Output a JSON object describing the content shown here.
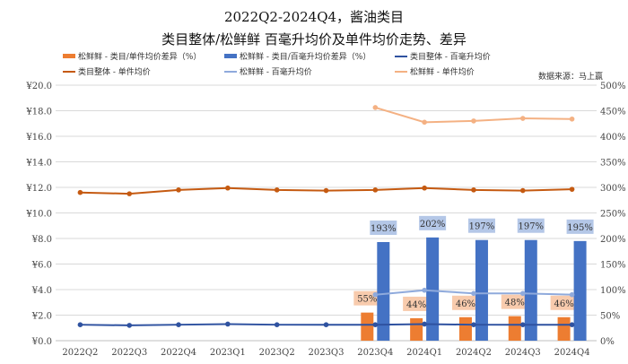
{
  "chart_data": {
    "type": "bar+line",
    "title": "2022Q2-2024Q4，酱油类目",
    "subtitle": "类目整体/松鲜鲜 百毫升均价及单件均价走势、差异",
    "source": "数据来源：马上赢",
    "categories": [
      "2022Q2",
      "2022Q3",
      "2022Q4",
      "2023Q1",
      "2023Q2",
      "2023Q3",
      "2023Q4",
      "2024Q1",
      "2024Q2",
      "2024Q3",
      "2024Q4"
    ],
    "y_left": {
      "ylim": [
        0,
        20
      ],
      "ticks": [
        "¥0.0",
        "¥2.0",
        "¥4.0",
        "¥6.0",
        "¥8.0",
        "¥10.0",
        "¥12.0",
        "¥14.0",
        "¥16.0",
        "¥18.0",
        "¥20.0"
      ]
    },
    "y_right": {
      "ylim": [
        0,
        500
      ],
      "ticks": [
        "0%",
        "50%",
        "100%",
        "150%",
        "200%",
        "250%",
        "300%",
        "350%",
        "400%",
        "450%",
        "500%"
      ]
    },
    "grid": true,
    "legend_position": "top",
    "series": [
      {
        "name": "松鲜鲜 - 类目/单件均价差异（%）",
        "type": "bar",
        "axis": "right",
        "color": "#ED7D31",
        "label_bg": "#F8CBAD",
        "values": [
          null,
          null,
          null,
          null,
          null,
          null,
          55,
          44,
          46,
          48,
          46
        ],
        "labels": [
          "",
          "",
          "",
          "",
          "",
          "",
          "55%",
          "44%",
          "46%",
          "48%",
          "46%"
        ]
      },
      {
        "name": "松鲜鲜 - 类目/百毫升均价差异（%）",
        "type": "bar",
        "axis": "right",
        "color": "#4472C4",
        "label_bg": "#B4C7E7",
        "values": [
          null,
          null,
          null,
          null,
          null,
          null,
          193,
          202,
          197,
          197,
          195
        ],
        "labels": [
          "",
          "",
          "",
          "",
          "",
          "",
          "193%",
          "202%",
          "197%",
          "197%",
          "195%"
        ]
      },
      {
        "name": "类目整体 - 百毫升均价",
        "type": "line",
        "axis": "left",
        "color": "#2F52A0",
        "values": [
          1.25,
          1.2,
          1.25,
          1.3,
          1.25,
          1.25,
          1.25,
          1.3,
          1.25,
          1.25,
          1.25
        ]
      },
      {
        "name": "类目整体 - 单件均价",
        "type": "line",
        "axis": "left",
        "color": "#C55A11",
        "values": [
          11.6,
          11.5,
          11.8,
          11.95,
          11.8,
          11.75,
          11.8,
          11.95,
          11.8,
          11.75,
          11.85
        ]
      },
      {
        "name": "松鲜鲜 - 百毫升均价",
        "type": "line",
        "axis": "left",
        "color": "#8FAADC",
        "values": [
          null,
          null,
          null,
          null,
          null,
          null,
          3.6,
          3.95,
          3.7,
          3.7,
          3.6
        ]
      },
      {
        "name": "松鲜鲜 - 单件均价",
        "type": "line",
        "axis": "left",
        "color": "#F4B183",
        "values": [
          null,
          null,
          null,
          null,
          null,
          null,
          18.25,
          17.1,
          17.2,
          17.4,
          17.35
        ]
      }
    ]
  }
}
